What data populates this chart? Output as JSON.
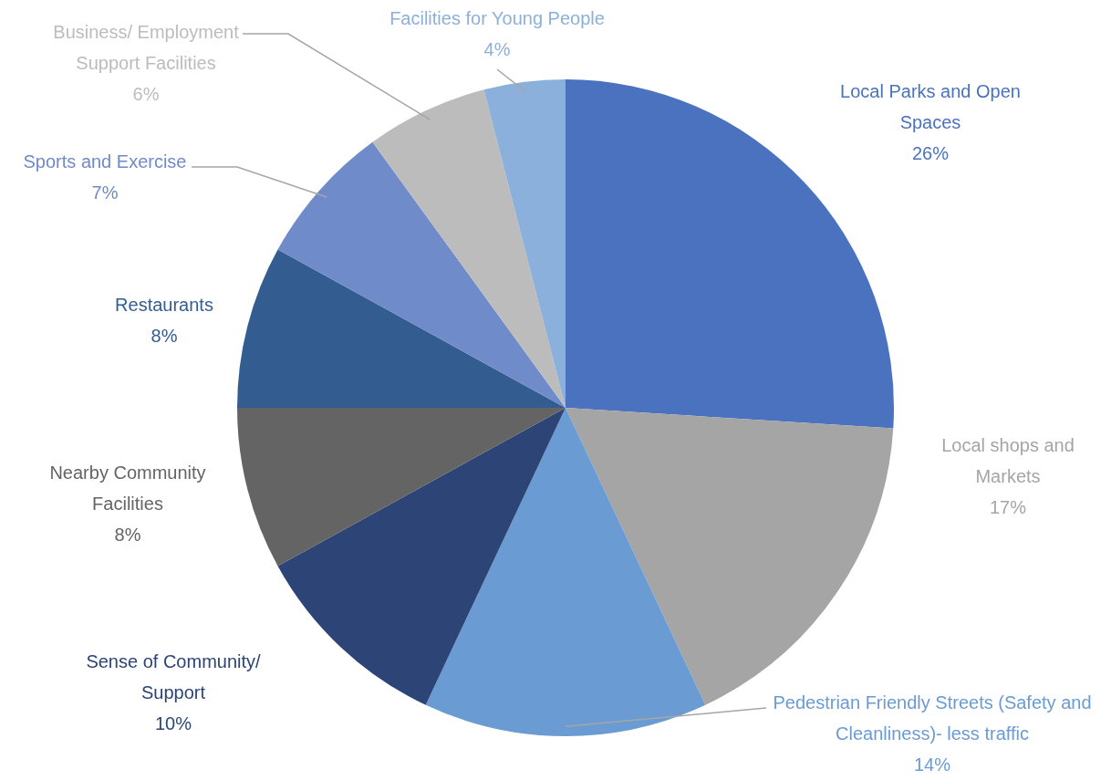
{
  "chart_data": {
    "type": "pie",
    "categories": [
      "Local Parks and Open Spaces",
      "Local shops and Markets",
      "Pedestrian Friendly Streets (Safety and Cleanliness)- less traffic",
      "Sense of Community/ Support",
      "Nearby Community Facilities",
      "Restaurants",
      "Sports and Exercise",
      "Business/ Employment Support Facilities",
      "Facilities for Young People"
    ],
    "values": [
      26,
      17,
      14,
      10,
      8,
      8,
      7,
      6,
      4
    ],
    "value_labels": [
      "26%",
      "17%",
      "14%",
      "10%",
      "8%",
      "8%",
      "7%",
      "6%",
      "4%"
    ],
    "colors": [
      "#4a72be",
      "#a5a5a5",
      "#6a9bd3",
      "#2c4476",
      "#646464",
      "#335d91",
      "#6f8bc9",
      "#bcbcbc",
      "#8cb0dc"
    ],
    "legend": false
  }
}
